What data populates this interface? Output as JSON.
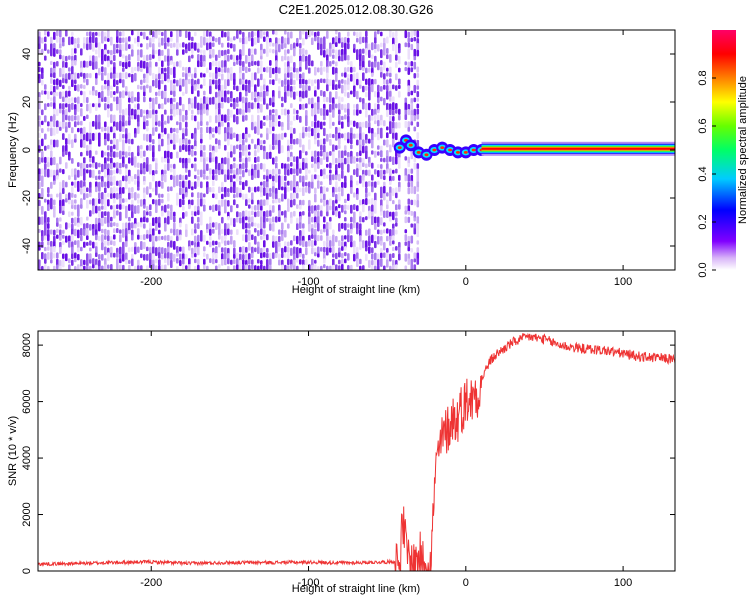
{
  "figure": {
    "title": "C2E1.2025.012.08.30.G26"
  },
  "chart_data": [
    {
      "type": "heatmap",
      "panel": "spectrogram",
      "xlabel": "Height of straight line (km)",
      "ylabel": "Frequency (Hz)",
      "xlim": [
        -272,
        133
      ],
      "ylim": [
        -50,
        50
      ],
      "xticks": [
        -200,
        -100,
        0,
        100
      ],
      "xtick_labels": [
        "-200",
        "-100",
        "0",
        "100"
      ],
      "yticks": [
        -40,
        -20,
        0,
        20,
        40
      ],
      "ytick_labels": [
        "-40",
        "-20",
        "0",
        "20",
        "40"
      ],
      "colorbar": {
        "label": "Normalized spectral amplitude",
        "range": [
          0.0,
          1.0
        ],
        "ticks": [
          0.0,
          0.2,
          0.4,
          0.6,
          0.8
        ],
        "tick_labels": [
          "0.0",
          "0.2",
          "0.4",
          "0.6",
          "0.8"
        ],
        "colors": [
          "#ffffff",
          "#c08cf0",
          "#7f00ff",
          "#0000ff",
          "#00e5ff",
          "#00ff00",
          "#ffff00",
          "#ff8000",
          "#ff0000",
          "#ff007f"
        ]
      },
      "features": [
        {
          "name": "noise",
          "x_range": [
            -272,
            -42
          ],
          "y_range": [
            -50,
            50
          ],
          "amplitude": 0.1
        },
        {
          "name": "noise",
          "x_range": [
            -39,
            -31
          ],
          "y_range": [
            -50,
            50
          ],
          "amplitude": 0.1
        },
        {
          "name": "carrier-transition",
          "x": [
            -42,
            -38,
            -35,
            -30,
            -25,
            -20,
            -15,
            -10,
            -5,
            0,
            5,
            10
          ],
          "y": [
            1,
            4,
            2,
            -1,
            -2,
            0,
            1,
            0,
            -1,
            -1,
            0,
            0
          ],
          "amplitude": 0.8
        },
        {
          "name": "carrier-tone",
          "x_range": [
            10,
            133
          ],
          "y": 0.5,
          "amplitude": 1.0
        }
      ]
    },
    {
      "type": "line",
      "panel": "snr",
      "xlabel": "Height of straight line (km)",
      "ylabel": "SNR (10 * v/v)",
      "xlim": [
        -272,
        133
      ],
      "ylim": [
        0,
        8500
      ],
      "xticks": [
        -200,
        -100,
        0,
        100
      ],
      "xtick_labels": [
        "-200",
        "-100",
        "0",
        "100"
      ],
      "yticks": [
        0,
        2000,
        4000,
        6000,
        8000
      ],
      "ytick_labels": [
        "0",
        "2000",
        "4000",
        "6000",
        "8000"
      ],
      "color": "#ee3333",
      "x": [
        -272,
        -250,
        -225,
        -200,
        -175,
        -150,
        -125,
        -100,
        -75,
        -50,
        -42,
        -40,
        -38,
        -36,
        -34,
        -32,
        -30,
        -28,
        -26,
        -24,
        -22,
        -20,
        -18,
        -16,
        -14,
        -12,
        -10,
        -8,
        -6,
        -4,
        -2,
        0,
        2,
        4,
        6,
        8,
        10,
        15,
        20,
        25,
        30,
        35,
        40,
        45,
        50,
        55,
        60,
        70,
        80,
        90,
        100,
        110,
        120,
        133
      ],
      "y": [
        250,
        260,
        300,
        320,
        270,
        300,
        300,
        310,
        290,
        320,
        350,
        1800,
        800,
        400,
        200,
        300,
        600,
        400,
        200,
        400,
        300,
        3000,
        4000,
        4500,
        4800,
        5000,
        5200,
        5500,
        5200,
        5700,
        5800,
        6000,
        6200,
        6000,
        6400,
        6300,
        6800,
        7400,
        7700,
        7900,
        8100,
        8200,
        8300,
        8250,
        8200,
        8100,
        8000,
        7900,
        7850,
        7800,
        7700,
        7600,
        7550,
        7500
      ]
    }
  ]
}
